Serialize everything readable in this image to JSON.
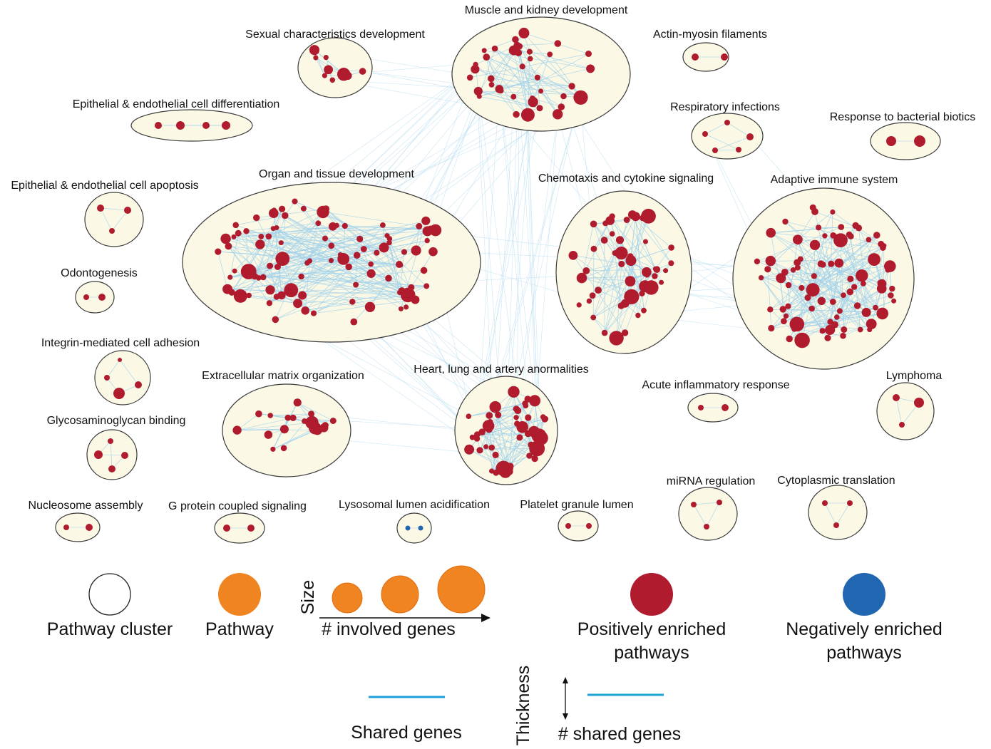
{
  "colors": {
    "positive": "#b01c2e",
    "negative": "#2166b0",
    "pathway": "#ef8420",
    "edge": "#9fd0ea",
    "legend_line": "#1ba0d8",
    "cluster_fill": "#fbf9e6",
    "cluster_stroke": "#3a3a3a"
  },
  "clusters": [
    {
      "id": "muscle",
      "label": "Muscle and kidney development",
      "enrichment": "positive",
      "nodes": 40
    },
    {
      "id": "sexual",
      "label": "Sexual characteristics development",
      "enrichment": "positive",
      "nodes": 9
    },
    {
      "id": "actin",
      "label": "Actin-myosin filaments",
      "enrichment": "positive",
      "nodes": 2
    },
    {
      "id": "epi_diff",
      "label": "Epithelial & endothelial cell differentiation",
      "enrichment": "positive",
      "nodes": 4
    },
    {
      "id": "resp",
      "label": "Respiratory infections",
      "enrichment": "positive",
      "nodes": 5
    },
    {
      "id": "bact",
      "label": "Response to bacterial biotics",
      "enrichment": "positive",
      "nodes": 2
    },
    {
      "id": "epi_apop",
      "label": "Epithelial & endothelial cell apoptosis",
      "enrichment": "positive",
      "nodes": 3
    },
    {
      "id": "organ",
      "label": "Organ and tissue development",
      "enrichment": "positive",
      "nodes": 100
    },
    {
      "id": "chemo",
      "label": "Chemotaxis and cytokine signaling",
      "enrichment": "positive",
      "nodes": 50
    },
    {
      "id": "adaptive",
      "label": "Adaptive immune system",
      "enrichment": "positive",
      "nodes": 90
    },
    {
      "id": "odonto",
      "label": "Odontogenesis",
      "enrichment": "positive",
      "nodes": 2
    },
    {
      "id": "integrin",
      "label": "Integrin-mediated cell adhesion",
      "enrichment": "positive",
      "nodes": 4
    },
    {
      "id": "ecm",
      "label": "Extracellular matrix organization",
      "enrichment": "positive",
      "nodes": 18
    },
    {
      "id": "heart",
      "label": "Heart, lung and artery anormalities",
      "enrichment": "positive",
      "nodes": 50
    },
    {
      "id": "acute",
      "label": "Acute inflammatory response",
      "enrichment": "positive",
      "nodes": 2
    },
    {
      "id": "lymphoma",
      "label": "Lymphoma",
      "enrichment": "positive",
      "nodes": 3
    },
    {
      "id": "gag",
      "label": "Glycosaminoglycan binding",
      "enrichment": "positive",
      "nodes": 4
    },
    {
      "id": "nucleosome",
      "label": "Nucleosome assembly",
      "enrichment": "positive",
      "nodes": 2
    },
    {
      "id": "gpcr",
      "label": "G protein coupled signaling",
      "enrichment": "positive",
      "nodes": 2
    },
    {
      "id": "lyso",
      "label": "Lysosomal lumen acidification",
      "enrichment": "negative",
      "nodes": 2
    },
    {
      "id": "platelet",
      "label": "Platelet granule lumen",
      "enrichment": "positive",
      "nodes": 2
    },
    {
      "id": "mirna",
      "label": "miRNA regulation",
      "enrichment": "positive",
      "nodes": 3
    },
    {
      "id": "cytotrans",
      "label": "Cytoplasmic translation",
      "enrichment": "positive",
      "nodes": 3
    }
  ],
  "legend": {
    "pathway_cluster": "Pathway cluster",
    "pathway": "Pathway",
    "size_axis": "Size",
    "involved_genes": "# involved genes",
    "positive_l1": "Positively enriched",
    "positive_l2": "pathways",
    "negative_l1": "Negatively enriched",
    "negative_l2": "pathways",
    "shared_genes": "Shared genes",
    "thickness_axis": "Thickness",
    "shared_genes_count": "# shared genes"
  }
}
